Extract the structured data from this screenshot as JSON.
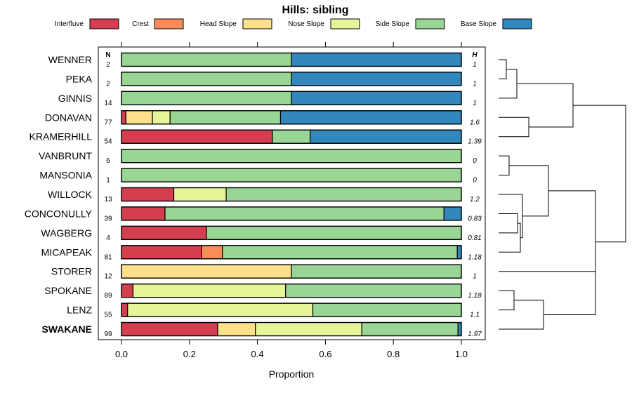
{
  "chart_data": {
    "type": "bar",
    "stacked": true,
    "orientation": "horizontal",
    "title": "Hills: sibling",
    "xlabel": "Proportion",
    "xlim": [
      0,
      1
    ],
    "x_ticks": [
      "0.0",
      "0.2",
      "0.4",
      "0.6",
      "0.8",
      "1.0"
    ],
    "x_tick_values": [
      0,
      0.2,
      0.4,
      0.6,
      0.8,
      1.0
    ],
    "n_header": "N",
    "h_header": "H",
    "legend": [
      {
        "name": "Interfluve",
        "color": "#d53e4f"
      },
      {
        "name": "Crest",
        "color": "#fc8d59"
      },
      {
        "name": "Head Slope",
        "color": "#fee08b"
      },
      {
        "name": "Nose Slope",
        "color": "#e6f598"
      },
      {
        "name": "Side Slope",
        "color": "#99d594"
      },
      {
        "name": "Base Slope",
        "color": "#3288bd"
      }
    ],
    "rows": [
      {
        "name": "WENNER",
        "n": "2",
        "h": "1",
        "bold": false,
        "values": [
          0,
          0,
          0,
          0,
          0.5,
          0.5
        ]
      },
      {
        "name": "PEKA",
        "n": "2",
        "h": "1",
        "bold": false,
        "values": [
          0,
          0,
          0,
          0,
          0.5,
          0.5
        ]
      },
      {
        "name": "GINNIS",
        "n": "14",
        "h": "1",
        "bold": false,
        "values": [
          0,
          0,
          0,
          0,
          0.5,
          0.5
        ]
      },
      {
        "name": "DONAVAN",
        "n": "77",
        "h": "1.6",
        "bold": false,
        "values": [
          0.013,
          0.0,
          0.078,
          0.052,
          0.325,
          0.532
        ]
      },
      {
        "name": "KRAMERHILL",
        "n": "54",
        "h": "1.39",
        "bold": false,
        "values": [
          0.444,
          0,
          0,
          0,
          0.111,
          0.445
        ]
      },
      {
        "name": "VANBRUNT",
        "n": "6",
        "h": "0",
        "bold": false,
        "values": [
          0,
          0,
          0,
          0,
          1.0,
          0
        ]
      },
      {
        "name": "MANSONIA",
        "n": "1",
        "h": "0",
        "bold": false,
        "values": [
          0,
          0,
          0,
          0,
          1.0,
          0
        ]
      },
      {
        "name": "WILLOCK",
        "n": "13",
        "h": "1.2",
        "bold": false,
        "values": [
          0.154,
          0,
          0,
          0.154,
          0.692,
          0
        ]
      },
      {
        "name": "CONCONULLY",
        "n": "39",
        "h": "0.83",
        "bold": false,
        "values": [
          0.128,
          0,
          0,
          0,
          0.821,
          0.051
        ]
      },
      {
        "name": "WAGBERG",
        "n": "4",
        "h": "0.81",
        "bold": false,
        "values": [
          0.25,
          0,
          0,
          0,
          0.75,
          0
        ]
      },
      {
        "name": "MICAPEAK",
        "n": "81",
        "h": "1.18",
        "bold": false,
        "values": [
          0.235,
          0.062,
          0,
          0,
          0.691,
          0.012
        ]
      },
      {
        "name": "STORER",
        "n": "12",
        "h": "1",
        "bold": false,
        "values": [
          0,
          0,
          0.5,
          0,
          0.5,
          0
        ]
      },
      {
        "name": "SPOKANE",
        "n": "89",
        "h": "1.18",
        "bold": false,
        "values": [
          0.034,
          0,
          0,
          0.449,
          0.517,
          0
        ]
      },
      {
        "name": "LENZ",
        "n": "55",
        "h": "1.1",
        "bold": false,
        "values": [
          0.018,
          0,
          0,
          0.545,
          0.437,
          0
        ]
      },
      {
        "name": "SWAKANE",
        "n": "99",
        "h": "1.97",
        "bold": true,
        "values": [
          0.283,
          0,
          0.111,
          0.313,
          0.283,
          0.01
        ]
      }
    ]
  }
}
